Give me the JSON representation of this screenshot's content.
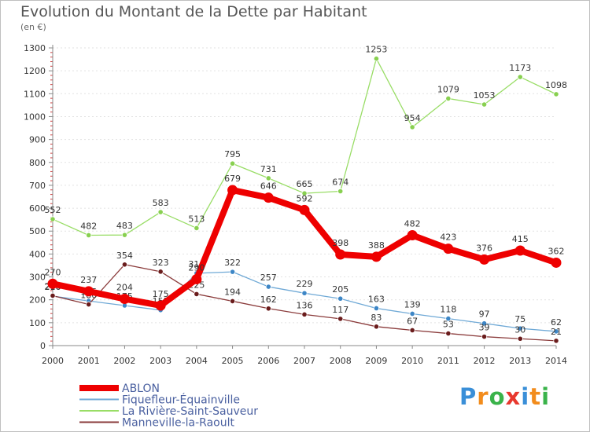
{
  "title": "Evolution du Montant de la Dette par Habitant",
  "subtitle": "(en €)",
  "logo": {
    "text": "Proxiti",
    "letter_colors": [
      "#3a8fd8",
      "#f28c1c",
      "#3ab34a",
      "#e8382e",
      "#3a8fd8",
      "#f28c1c",
      "#3ab34a"
    ]
  },
  "chart_data": {
    "type": "line",
    "title": "Evolution du Montant de la Dette par Habitant",
    "subtitle": "(en €)",
    "xlabel": "",
    "ylabel": "",
    "ylim": [
      0,
      1300
    ],
    "yticks": [
      0,
      100,
      200,
      300,
      400,
      500,
      600,
      700,
      800,
      900,
      1000,
      1100,
      1200,
      1300
    ],
    "grid": true,
    "legend_position": "bottom-left",
    "x": [
      "2000",
      "2001",
      "2002",
      "2003",
      "2004",
      "2005",
      "2006",
      "2007",
      "2008",
      "2009",
      "2010",
      "2011",
      "2012",
      "2013",
      "2014"
    ],
    "series": [
      {
        "name": "La Rivière-Saint-Sauveur",
        "color": "#99dd66",
        "point_color": "#88d050",
        "values": [
          552,
          482,
          483,
          583,
          513,
          795,
          731,
          665,
          674,
          1253,
          954,
          1079,
          1053,
          1173,
          1098
        ],
        "labels": [
          "552",
          "482",
          "483",
          "583",
          "513",
          "795",
          "731",
          "665",
          "674",
          "1253",
          "954",
          "1079",
          "1053",
          "1173",
          "1098"
        ],
        "label_pos": "above",
        "emphasis": false
      },
      {
        "name": "Fiquefleur-Équainville",
        "color": "#6fa9d6",
        "point_color": "#3d86c6",
        "values": [
          216,
          195,
          175,
          155,
          316,
          322,
          257,
          229,
          205,
          163,
          139,
          118,
          97,
          75,
          62
        ],
        "labels": [
          "216",
          "195",
          "175",
          "155",
          "316",
          "322",
          "257",
          "229",
          "205",
          "163",
          "139",
          "118",
          "97",
          "75",
          "62"
        ],
        "label_pos": "above",
        "emphasis": false
      },
      {
        "name": "Manneville-la-Raoult",
        "color": "#8a3a3a",
        "point_color": "#6a1c1c",
        "values": [
          218,
          180,
          354,
          323,
          225,
          194,
          162,
          136,
          117,
          83,
          67,
          53,
          39,
          30,
          21
        ],
        "labels": [
          "218",
          "180",
          "354",
          "323",
          "225",
          "194",
          "162",
          "136",
          "117",
          "83",
          "67",
          "53",
          "39",
          "30",
          "21"
        ],
        "label_pos": "above",
        "emphasis": false
      },
      {
        "name": "ABLON",
        "color": "#ee0000",
        "point_color": "#ee0000",
        "values": [
          270,
          237,
          204,
          175,
          290,
          679,
          646,
          592,
          398,
          388,
          482,
          423,
          376,
          415,
          362
        ],
        "labels": [
          "270",
          "237",
          "204",
          "175",
          "290",
          "679",
          "646",
          "592",
          "398",
          "388",
          "482",
          "423",
          "376",
          "415",
          "362"
        ],
        "label_pos": "above",
        "emphasis": true
      }
    ],
    "legend_order": [
      "ABLON",
      "Fiquefleur-Équainville",
      "La Rivière-Saint-Sauveur",
      "Manneville-la-Raoult"
    ]
  }
}
